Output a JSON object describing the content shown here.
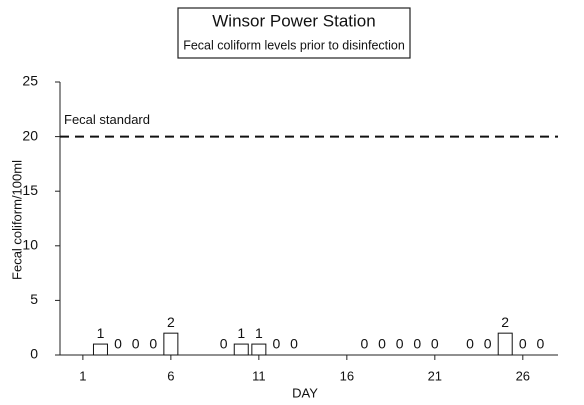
{
  "chart_data": {
    "type": "bar",
    "title": "Winsor Power Station",
    "subtitle": "Fecal coliform levels prior to disinfection",
    "x_label": "DAY",
    "y_label": "Fecal coliform/100ml",
    "x": [
      2,
      3,
      4,
      5,
      6,
      9,
      10,
      11,
      12,
      13,
      17,
      18,
      19,
      20,
      21,
      23,
      24,
      25,
      26,
      27
    ],
    "values": [
      1,
      0,
      0,
      0,
      2,
      0,
      1,
      1,
      0,
      0,
      0,
      0,
      0,
      0,
      0,
      0,
      0,
      2,
      0,
      0
    ],
    "color": "#ffffff",
    "xlim": [
      -0.3,
      28
    ],
    "xticks": [
      1,
      6,
      11,
      16,
      21,
      26
    ],
    "ylim": [
      0,
      25
    ],
    "yticks": [
      0,
      5,
      10,
      15,
      20,
      25
    ],
    "reference_line": {
      "value": 20,
      "label": "Fecal standard"
    }
  }
}
